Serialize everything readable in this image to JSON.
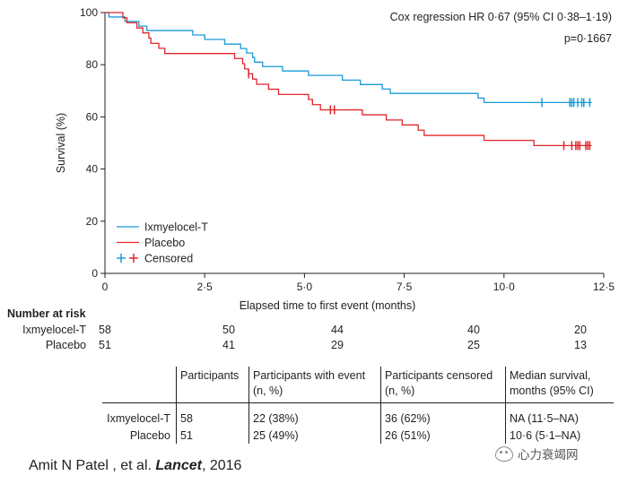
{
  "chart_data": {
    "type": "line",
    "subtype": "kaplan-meier",
    "xlabel": "Elapsed time to first event (months)",
    "ylabel": "Survival (%)",
    "xlim": [
      0,
      12.5
    ],
    "ylim": [
      0,
      100
    ],
    "x_ticks": [
      0,
      2.5,
      5,
      7.5,
      10,
      12.5
    ],
    "x_tick_labels": [
      "0",
      "2·5",
      "5·0",
      "7·5",
      "10·0",
      "12·5"
    ],
    "y_ticks": [
      0,
      20,
      40,
      60,
      80,
      100
    ],
    "y_tick_labels": [
      "0",
      "20",
      "40",
      "60",
      "80",
      "100"
    ],
    "annotations": [
      "Cox regression HR 0·67 (95% CI 0·38–1·19)",
      "p=0·1667"
    ],
    "legend": {
      "position": "bottom-left",
      "entries": [
        "Ixmyelocel-T",
        "Placebo",
        "Censored"
      ]
    },
    "series": [
      {
        "name": "Ixmyelocel-T",
        "color": "#1a9bd7",
        "steps": [
          [
            0,
            100
          ],
          [
            0.1,
            98.3
          ],
          [
            0.5,
            96.6
          ],
          [
            0.85,
            94.8
          ],
          [
            1.05,
            93.1
          ],
          [
            2.2,
            91.4
          ],
          [
            2.5,
            89.7
          ],
          [
            3.0,
            87.9
          ],
          [
            3.4,
            86.2
          ],
          [
            3.55,
            84.5
          ],
          [
            3.7,
            82.8
          ],
          [
            3.75,
            81.0
          ],
          [
            3.95,
            79.3
          ],
          [
            4.45,
            77.6
          ],
          [
            5.1,
            75.9
          ],
          [
            5.95,
            74.1
          ],
          [
            6.4,
            72.4
          ],
          [
            6.95,
            70.7
          ],
          [
            7.15,
            69.0
          ],
          [
            9.35,
            67.2
          ],
          [
            9.5,
            65.5
          ]
        ],
        "end_x": 12.2,
        "censored_x": [
          10.95,
          11.65,
          11.7,
          11.75,
          11.85,
          11.95,
          12.0,
          12.15
        ]
      },
      {
        "name": "Placebo",
        "color": "#e1262a",
        "steps": [
          [
            0,
            100
          ],
          [
            0.45,
            98.0
          ],
          [
            0.55,
            96.1
          ],
          [
            0.8,
            94.1
          ],
          [
            0.95,
            92.2
          ],
          [
            1.1,
            90.2
          ],
          [
            1.15,
            88.2
          ],
          [
            1.35,
            86.3
          ],
          [
            1.5,
            84.3
          ],
          [
            3.25,
            82.4
          ],
          [
            3.45,
            80.4
          ],
          [
            3.5,
            78.4
          ],
          [
            3.6,
            76.5
          ],
          [
            3.7,
            74.5
          ],
          [
            3.8,
            72.5
          ],
          [
            4.1,
            70.6
          ],
          [
            4.35,
            68.6
          ],
          [
            5.1,
            66.7
          ],
          [
            5.2,
            64.7
          ],
          [
            5.4,
            62.7
          ],
          [
            6.45,
            60.8
          ],
          [
            7.05,
            58.8
          ],
          [
            7.45,
            56.9
          ],
          [
            7.85,
            54.9
          ],
          [
            8.0,
            52.9
          ],
          [
            9.5,
            51.0
          ],
          [
            10.75,
            49.0
          ]
        ],
        "end_x": 12.2,
        "censored_x": [
          3.6,
          5.65,
          5.75,
          11.5,
          11.7,
          11.8,
          11.85,
          11.9,
          12.05,
          12.1,
          12.15
        ]
      }
    ],
    "number_at_risk": {
      "title": "Number at risk",
      "times": [
        0,
        2.5,
        5,
        7.5,
        10,
        12.5
      ],
      "rows": [
        {
          "label": "Ixmyelocel-T",
          "values": [
            "58",
            "50",
            "44",
            "40",
            "20"
          ]
        },
        {
          "label": "Placebo",
          "values": [
            "51",
            "41",
            "29",
            "25",
            "13"
          ]
        }
      ]
    }
  },
  "summary_table": {
    "headers": [
      "Participants",
      "Participants with event (n, %)",
      "Participants censored (n, %)",
      "Median survival, months (95% CI)"
    ],
    "header_lines": [
      [
        "Participants"
      ],
      [
        "Participants with event",
        "(n, %)"
      ],
      [
        "Participants censored",
        "(n, %)"
      ],
      [
        "Median survival,",
        "months (95% CI)"
      ]
    ],
    "rows": [
      {
        "label": "Ixmyelocel-T",
        "participants": "58",
        "with_event": "22 (38%)",
        "censored": "36 (62%)",
        "median": "NA (11·5–NA)"
      },
      {
        "label": "Placebo",
        "participants": "51",
        "with_event": "25 (49%)",
        "censored": "26 (51%)",
        "median": "10·6 (5·1–NA)"
      }
    ]
  },
  "citation": {
    "authors": "Amit N Patel , et al.",
    "journal": "Lancet",
    "year": ", 2016"
  },
  "watermark": {
    "text": "心力衰竭网",
    "icon": "wechat-icon"
  }
}
